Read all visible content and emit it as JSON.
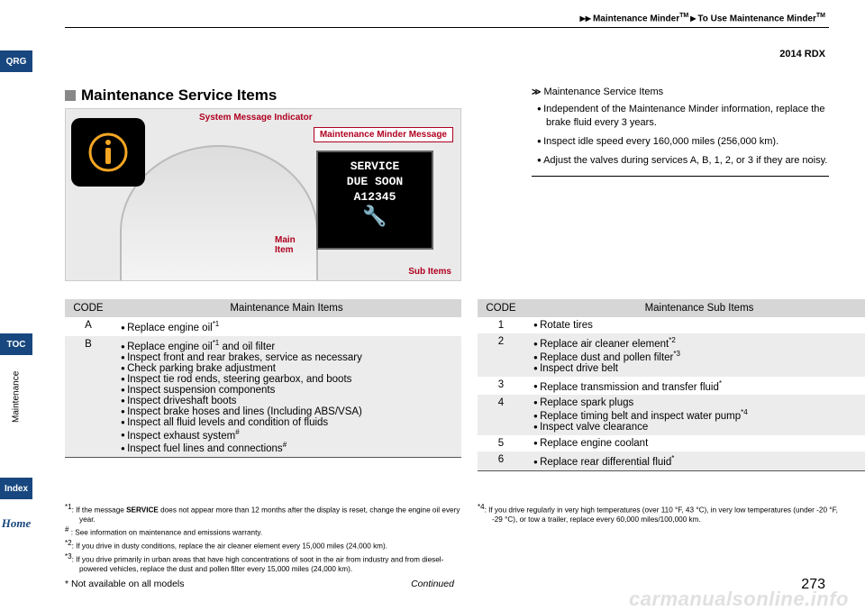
{
  "breadcrumb": {
    "a": "Maintenance Minder",
    "b": "To Use Maintenance Minder",
    "tm": "TM"
  },
  "model": "2014 RDX",
  "sidebar": {
    "qrg": "QRG",
    "toc": "TOC",
    "vert": "Maintenance",
    "index": "Index",
    "home": "Home"
  },
  "section_title": "Maintenance Service Items",
  "dash_labels": {
    "sys_msg": "System Message Indicator",
    "mm_msg": "Maintenance Minder Message",
    "main_item": "Main\nItem",
    "sub_items": "Sub Items",
    "lcd_line1": "SERVICE",
    "lcd_line2": "DUE SOON",
    "lcd_line3": "A12345",
    "wrench": "🔧"
  },
  "infobox": {
    "header": "Maintenance Service Items",
    "items": [
      "Independent of the Maintenance Minder information, replace the brake fluid every 3 years.",
      "Inspect idle speed every 160,000 miles (256,000 km).",
      "Adjust the valves during services A, B, 1, 2, or 3 if they are noisy."
    ]
  },
  "table_main": {
    "code_header": "CODE",
    "items_header": "Maintenance Main Items",
    "rows": [
      {
        "code": "A",
        "shade": false,
        "items": [
          "Replace engine oil*1"
        ]
      },
      {
        "code": "B",
        "shade": true,
        "items": [
          "Replace engine oil*1 and oil filter",
          "Inspect front and rear brakes, service as necessary",
          "Check parking brake adjustment",
          "Inspect tie rod ends, steering gearbox, and boots",
          "Inspect suspension components",
          "Inspect driveshaft boots",
          "Inspect brake hoses and lines (Including ABS/VSA)",
          "Inspect all fluid levels and condition of fluids",
          "Inspect exhaust system#",
          "Inspect fuel lines and connections#"
        ]
      }
    ]
  },
  "table_sub": {
    "code_header": "CODE",
    "items_header": "Maintenance Sub Items",
    "rows": [
      {
        "code": "1",
        "shade": false,
        "items": [
          "Rotate tires"
        ]
      },
      {
        "code": "2",
        "shade": true,
        "items": [
          "Replace air cleaner element*2",
          "Replace dust and pollen filter*3",
          "Inspect drive belt"
        ]
      },
      {
        "code": "3",
        "shade": false,
        "items": [
          "Replace transmission and transfer fluid*"
        ]
      },
      {
        "code": "4",
        "shade": true,
        "items": [
          "Replace spark plugs",
          "Replace timing belt and inspect water pump*4",
          "Inspect valve clearance"
        ]
      },
      {
        "code": "5",
        "shade": false,
        "items": [
          "Replace engine coolant"
        ]
      },
      {
        "code": "6",
        "shade": true,
        "items": [
          "Replace rear differential fluid*"
        ]
      }
    ]
  },
  "footnotes_left": [
    "*1: If the message SERVICE does not appear more than 12 months after the display is reset, change the engine oil every year.",
    "# : See information on maintenance and emissions warranty.",
    "*2: If you drive in dusty conditions, replace the air cleaner element every 15,000 miles (24,000 km).",
    "*3: If you drive primarily in urban areas that have high concentrations of soot in the air from industry and from diesel-powered vehicles, replace the dust and pollen filter every 15,000 miles (24,000 km)."
  ],
  "footnotes_right": [
    "*4: If you drive regularly in very high temperatures (over 110 °F, 43 °C), in very low temperatures (under -20 °F, -29 °C), or tow a trailer, replace every 60,000 miles/100,000 km."
  ],
  "footer": {
    "not_avail": "* Not available on all models",
    "continued": "Continued",
    "page": "273"
  },
  "watermark": "carmanualsonline.info"
}
